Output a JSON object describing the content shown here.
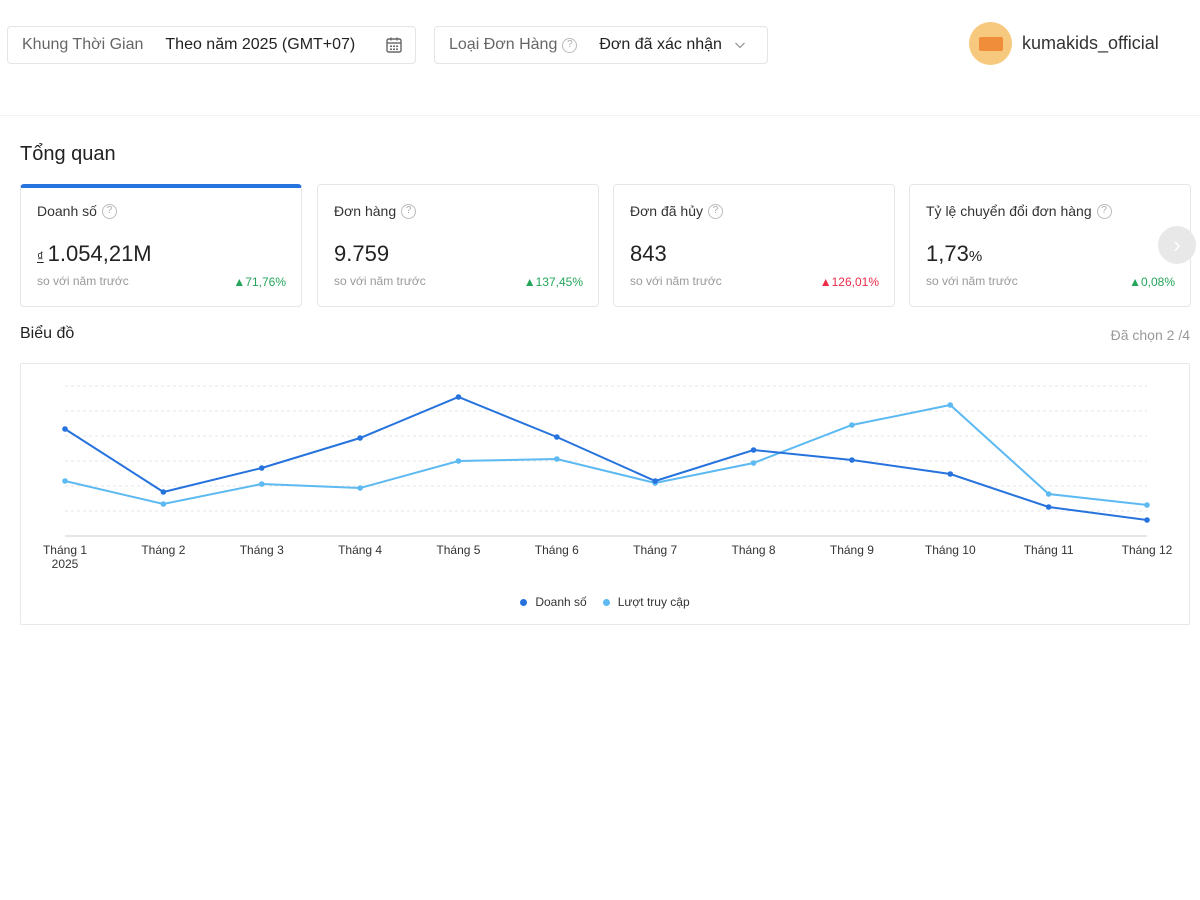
{
  "filters": {
    "time": {
      "label": "Khung Thời Gian",
      "value": "Theo năm  2025 (GMT+07)"
    },
    "order_type": {
      "label": "Loại Đơn Hàng",
      "value": "Đơn đã xác nhận"
    }
  },
  "shop": {
    "name": "kumakids_official"
  },
  "overview": {
    "title": "Tổng quan",
    "cards": [
      {
        "title": "Doanh số",
        "currency": "₫",
        "value": "1.054,21M",
        "unit": "",
        "note": "so với năm trước",
        "change": "71,76%",
        "trend": "up",
        "color": "#23a55a"
      },
      {
        "title": "Đơn hàng",
        "currency": "",
        "value": "9.759",
        "unit": "",
        "note": "so với năm trước",
        "change": "137,45%",
        "trend": "up",
        "color": "#23a55a"
      },
      {
        "title": "Đơn đã hủy",
        "currency": "",
        "value": "843",
        "unit": "",
        "note": "so với năm trước",
        "change": "126,01%",
        "trend": "up",
        "color": "#ee2c4a"
      },
      {
        "title": "Tỷ lệ chuyển đổi đơn hàng",
        "currency": "",
        "value": "1,73",
        "unit": "%",
        "note": "so với năm trước",
        "change": "0,08%",
        "trend": "up",
        "color": "#23a55a"
      }
    ]
  },
  "chart": {
    "title": "Biểu đồ",
    "selected": "Đã chọn 2 /4"
  },
  "chart_data": {
    "type": "line",
    "categories": [
      "Tháng 1",
      "Tháng 2",
      "Tháng 3",
      "Tháng 4",
      "Tháng 5",
      "Tháng 6",
      "Tháng 7",
      "Tháng 8",
      "Tháng 9",
      "Tháng 10",
      "Tháng 11",
      "Tháng 12"
    ],
    "category_sublabel_first": "2025",
    "series": [
      {
        "name": "Doanh số",
        "color": "#2673dd",
        "values": [
          107,
          44,
          68,
          98,
          139,
          99,
          55,
          86,
          76,
          62,
          29,
          16
        ]
      },
      {
        "name": "Lượt truy cập",
        "color": "#5cb9f2",
        "values": [
          55,
          32,
          52,
          48,
          75,
          77,
          53,
          73,
          111,
          131,
          42,
          31
        ]
      }
    ],
    "ylim": [
      0,
      150
    ],
    "grid": true,
    "legend": "bottom-center"
  }
}
